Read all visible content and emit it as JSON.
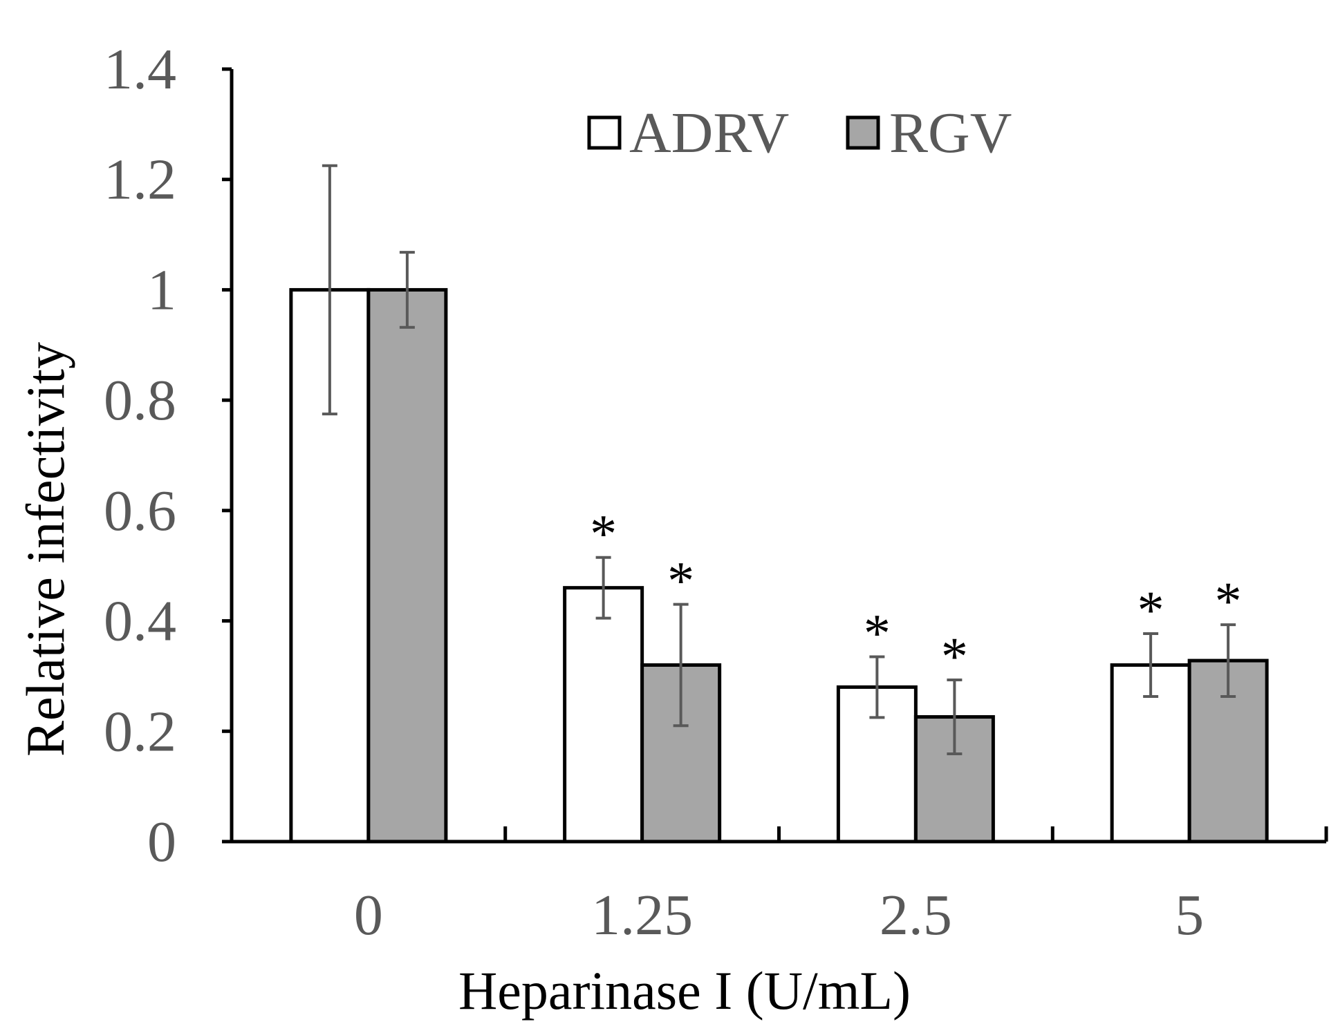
{
  "chart_data": {
    "type": "bar",
    "xlabel": "Heparinase I (U/mL)",
    "ylabel": "Relative infectivity",
    "categories": [
      "0",
      "1.25",
      "2.5",
      "5"
    ],
    "ylim": [
      0,
      1.4
    ],
    "yticks": [
      "0",
      "0.2",
      "0.4",
      "0.6",
      "0.8",
      "1",
      "1.2",
      "1.4"
    ],
    "yticks_values": [
      0,
      0.2,
      0.4,
      0.6,
      0.8,
      1.0,
      1.2,
      1.4
    ],
    "legend_position": "top-center",
    "grid": false,
    "series": [
      {
        "name": "ADRV",
        "color": "#ffffff",
        "values": [
          1.0,
          0.46,
          0.28,
          0.32
        ],
        "error": [
          0.225,
          0.055,
          0.055,
          0.057
        ],
        "significance": [
          "",
          "*",
          "*",
          "*"
        ]
      },
      {
        "name": "RGV",
        "color": "#a6a6a6",
        "values": [
          1.0,
          0.32,
          0.226,
          0.328
        ],
        "error": [
          0.068,
          0.11,
          0.067,
          0.065
        ],
        "significance": [
          "",
          "*",
          "*",
          "*"
        ]
      }
    ]
  }
}
